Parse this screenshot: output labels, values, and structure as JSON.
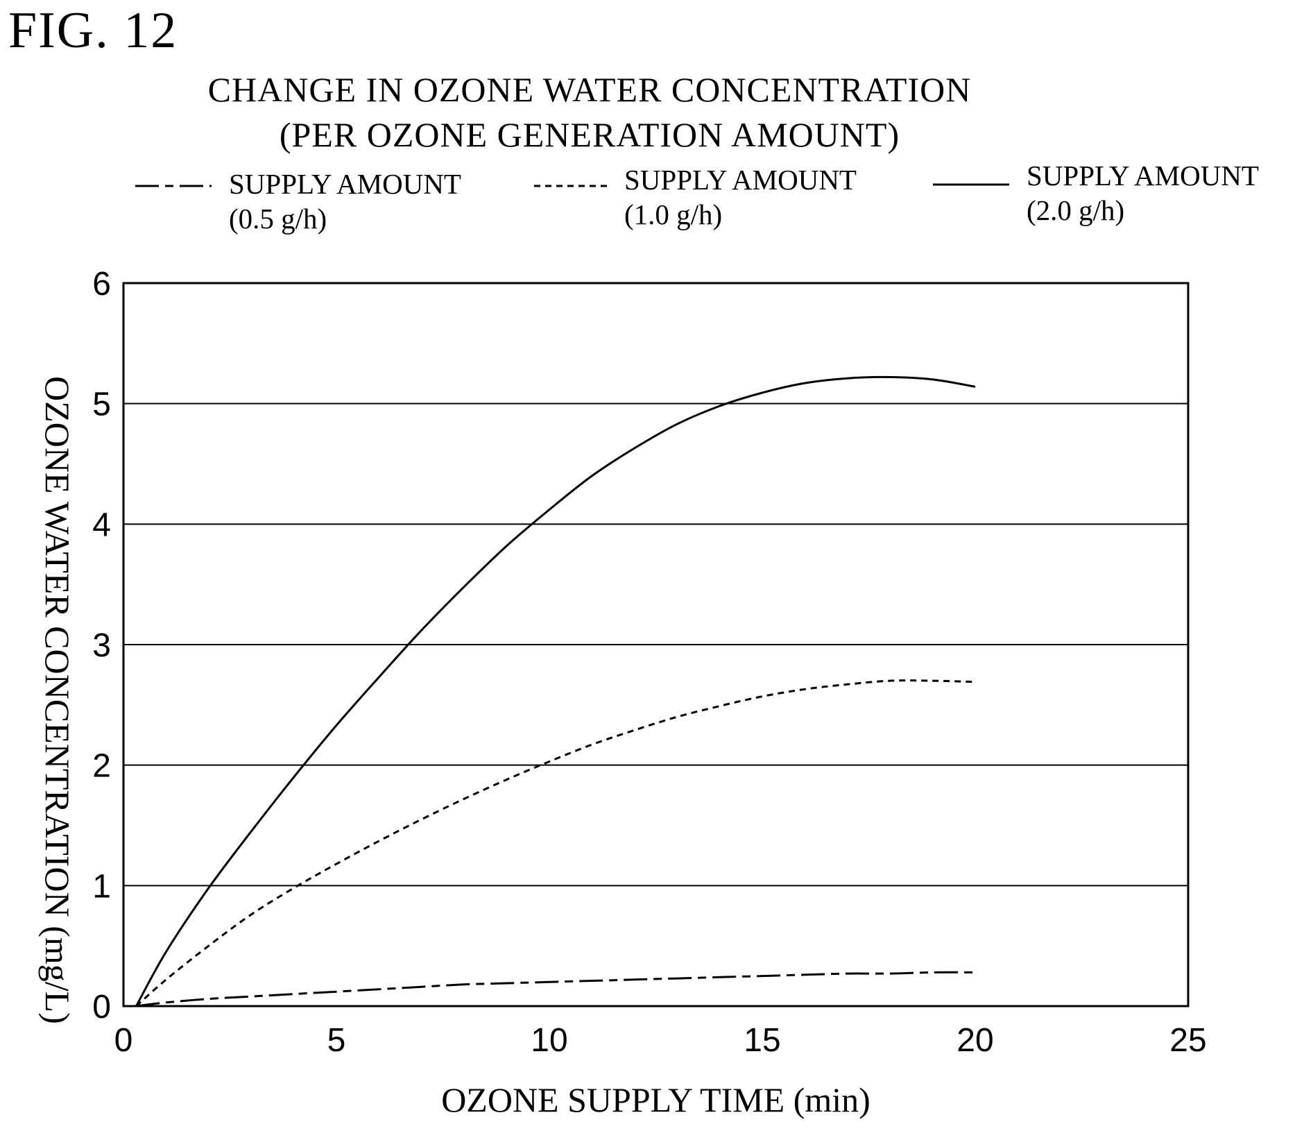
{
  "figure_label": "FIG. 12",
  "chart_data": {
    "type": "line",
    "title_line1": "CHANGE IN OZONE WATER CONCENTRATION",
    "title_line2": "(PER OZONE GENERATION AMOUNT)",
    "xlabel": "OZONE SUPPLY TIME (min)",
    "ylabel": "OZONE WATER CONCENTRATION (mg/L)",
    "xlim": [
      0,
      25
    ],
    "ylim": [
      0,
      6
    ],
    "xticks": [
      0,
      5,
      10,
      15,
      20,
      25
    ],
    "yticks": [
      0,
      1,
      2,
      3,
      4,
      5,
      6
    ],
    "grid": "horizontal",
    "legend_position": "top",
    "series": [
      {
        "name": "SUPPLY AMOUNT (0.5 g/h)",
        "name_line1": "SUPPLY AMOUNT",
        "name_line2": "(0.5 g/h)",
        "style": "dash-dot",
        "x": [
          0.3,
          1,
          2,
          3,
          4,
          5,
          6,
          7,
          8,
          9,
          10,
          11,
          12,
          13,
          14,
          15,
          16,
          17,
          18,
          19,
          20
        ],
        "y": [
          0,
          0.03,
          0.06,
          0.08,
          0.1,
          0.12,
          0.14,
          0.16,
          0.18,
          0.19,
          0.2,
          0.21,
          0.22,
          0.23,
          0.24,
          0.25,
          0.26,
          0.27,
          0.27,
          0.28,
          0.28
        ]
      },
      {
        "name": "SUPPLY AMOUNT (1.0 g/h)",
        "name_line1": "SUPPLY AMOUNT",
        "name_line2": "(1.0 g/h)",
        "style": "dashed",
        "x": [
          0.3,
          1,
          2,
          3,
          4,
          5,
          6,
          7,
          8,
          9,
          10,
          11,
          12,
          13,
          14,
          15,
          16,
          17,
          18,
          19,
          20
        ],
        "y": [
          0,
          0.22,
          0.5,
          0.76,
          0.98,
          1.18,
          1.37,
          1.55,
          1.72,
          1.88,
          2.03,
          2.17,
          2.29,
          2.4,
          2.49,
          2.57,
          2.63,
          2.67,
          2.7,
          2.7,
          2.69
        ]
      },
      {
        "name": "SUPPLY AMOUNT (2.0 g/h)",
        "name_line1": "SUPPLY AMOUNT",
        "name_line2": "(2.0 g/h)",
        "style": "solid",
        "x": [
          0.3,
          1,
          2,
          3,
          4,
          5,
          6,
          7,
          8,
          9,
          10,
          11,
          12,
          13,
          14,
          15,
          16,
          17,
          18,
          19,
          20
        ],
        "y": [
          0,
          0.45,
          0.98,
          1.45,
          1.9,
          2.33,
          2.73,
          3.12,
          3.48,
          3.82,
          4.12,
          4.4,
          4.63,
          4.83,
          4.98,
          5.09,
          5.17,
          5.21,
          5.22,
          5.2,
          5.14
        ]
      }
    ]
  }
}
